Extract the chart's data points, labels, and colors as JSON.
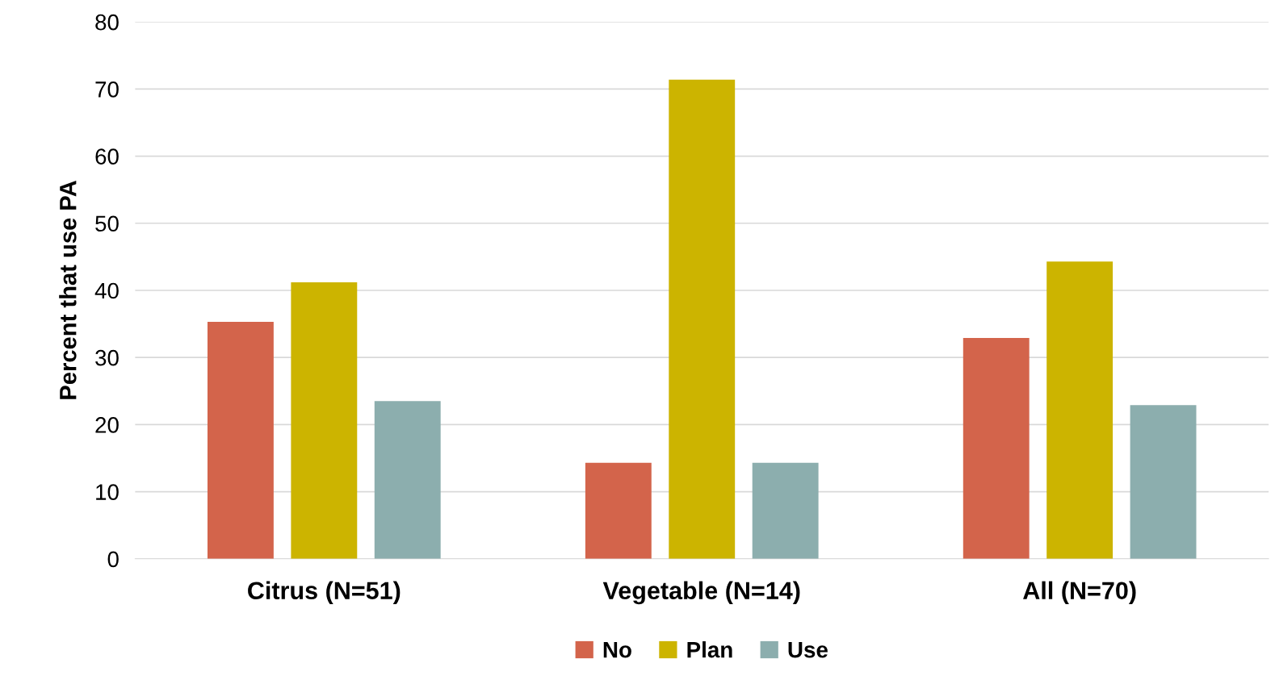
{
  "chart_data": {
    "type": "bar",
    "ylabel": "Percent that use PA",
    "categories": [
      "Citrus (N=51)",
      "Vegetable (N=14)",
      "All (N=70)"
    ],
    "series": [
      {
        "name": "No",
        "color": "#d3644b",
        "values": [
          35.3,
          14.3,
          32.9
        ]
      },
      {
        "name": "Plan",
        "color": "#ccb400",
        "values": [
          41.2,
          71.4,
          44.3
        ]
      },
      {
        "name": "Use",
        "color": "#8caeae",
        "values": [
          23.5,
          14.3,
          22.9
        ]
      }
    ],
    "ylim": [
      0,
      80
    ],
    "yticks": [
      0,
      10,
      20,
      30,
      40,
      50,
      60,
      70,
      80
    ],
    "grid": "y",
    "legend": "bottom"
  }
}
